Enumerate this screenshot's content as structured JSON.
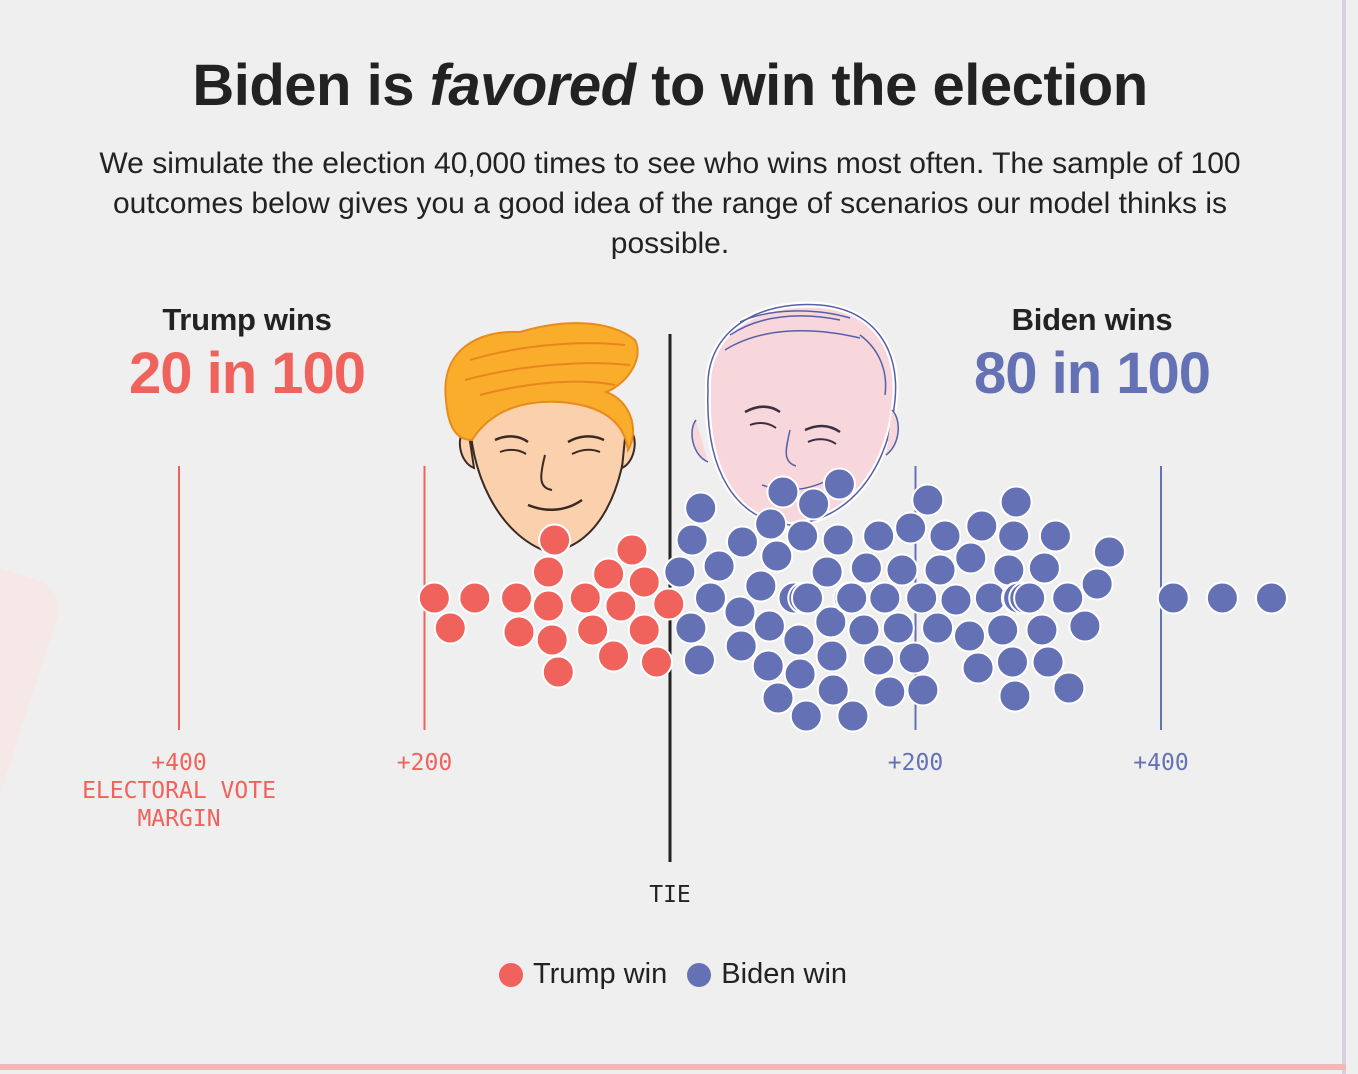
{
  "header": {
    "title_pre": "Biden is ",
    "title_em": "favored",
    "title_post": " to win the election",
    "subtitle": "We simulate the election 40,000 times to see who wins most often. The sample of 100 outcomes below gives you a good idea of the range of scenarios our model thinks is possible."
  },
  "trump_summary": {
    "label": "Trump wins",
    "count": "20 in 100"
  },
  "biden_summary": {
    "label": "Biden wins",
    "count": "80 in 100"
  },
  "colors": {
    "trump": "#f0625c",
    "biden": "#6471b4",
    "tie_line": "#222222",
    "trump_hair": "#f9ad2b",
    "trump_skin": "#fbd0ad",
    "biden_skin": "#f8d7dc"
  },
  "icons": [
    "trump-illustration",
    "biden-illustration"
  ],
  "chart_data": {
    "type": "scatter",
    "subtype": "beeswarm",
    "xlabel": "ELECTORAL VOTE MARGIN",
    "tie_label": "TIE",
    "x_range": [
      -400,
      400
    ],
    "ticks": [
      {
        "value": -400,
        "label": "+400",
        "side": "trump"
      },
      {
        "value": -200,
        "label": "+200",
        "side": "trump"
      },
      {
        "value": 200,
        "label": "+200",
        "side": "biden"
      },
      {
        "value": 400,
        "label": "+400",
        "side": "biden"
      }
    ],
    "legend": [
      {
        "name": "Trump win",
        "side": "trump"
      },
      {
        "name": "Biden win",
        "side": "biden"
      }
    ],
    "legend_placement": "bottom-center",
    "series": [
      {
        "name": "Trump win",
        "values": [
          -192,
          -179,
          -159,
          -125,
          -123,
          -99,
          -99,
          -96,
          -94,
          -91,
          -69,
          -63,
          -50,
          -46,
          -40,
          -31,
          -21,
          -21,
          -11,
          -1
        ]
      },
      {
        "name": "Biden win",
        "values": [
          8,
          17,
          18,
          24,
          25,
          33,
          40,
          57,
          58,
          59,
          74,
          80,
          81,
          82,
          87,
          88,
          92,
          101,
          105,
          106,
          108,
          109,
          111,
          112,
          117,
          128,
          131,
          132,
          133,
          137,
          138,
          146,
          148,
          148,
          148,
          149,
          158,
          160,
          170,
          170,
          175,
          179,
          186,
          189,
          196,
          199,
          205,
          206,
          210,
          218,
          220,
          224,
          233,
          244,
          245,
          251,
          254,
          261,
          271,
          276,
          279,
          280,
          282,
          281,
          283,
          284,
          289,
          293,
          303,
          305,
          308,
          314,
          324,
          325,
          338,
          348,
          358,
          410,
          450,
          490
        ]
      }
    ]
  }
}
